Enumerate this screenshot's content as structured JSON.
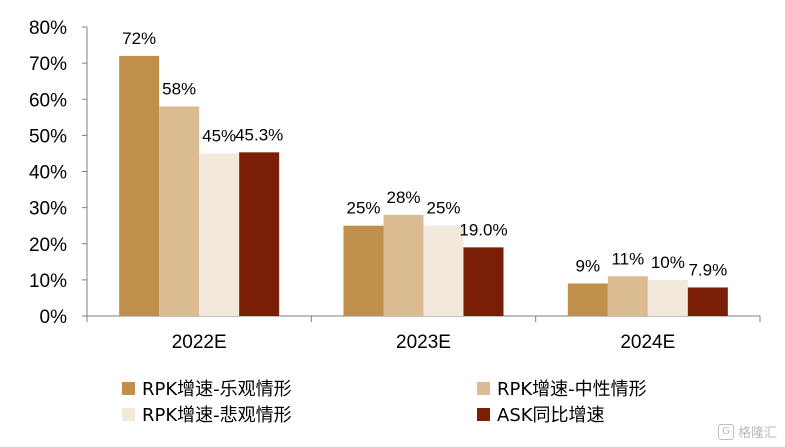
{
  "chart_data": {
    "type": "bar",
    "categories": [
      "2022E",
      "2023E",
      "2024E"
    ],
    "series": [
      {
        "name": "RPK增速-乐观情形",
        "values": [
          72,
          25,
          9
        ],
        "labels": [
          "72%",
          "25%",
          "9%"
        ],
        "color": "#c08f4a"
      },
      {
        "name": "RPK增速-中性情形",
        "values": [
          58,
          28,
          11
        ],
        "labels": [
          "58%",
          "28%",
          "11%"
        ],
        "color": "#dbbb92"
      },
      {
        "name": "RPK增速-悲观情形",
        "values": [
          45,
          25,
          10
        ],
        "labels": [
          "45%",
          "25%",
          "10%"
        ],
        "color": "#f3e8dc"
      },
      {
        "name": "ASK同比增速",
        "values": [
          45.3,
          19.0,
          7.9
        ],
        "labels": [
          "45.3%",
          "19.0%",
          "7.9%"
        ],
        "color": "#7a1e06"
      }
    ],
    "ylim": [
      0,
      80
    ],
    "yticks": [
      "0%",
      "10%",
      "20%",
      "30%",
      "40%",
      "50%",
      "60%",
      "70%",
      "80%"
    ],
    "grid": false,
    "legend_position": "bottom"
  },
  "watermark": {
    "icon": "gelonghui-logo-icon",
    "logo_glyph": "G",
    "text": "格隆汇"
  }
}
